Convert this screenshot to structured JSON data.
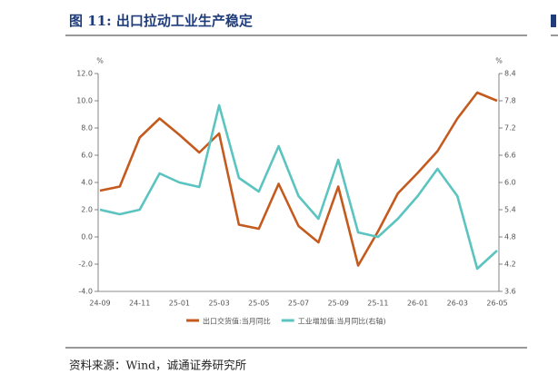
{
  "header": {
    "title": "图 11:  出口拉动工业生产稳定"
  },
  "chart_data": {
    "type": "line",
    "y_unit": "%",
    "y2_unit": "%",
    "categories": [
      "24-09",
      null,
      "24-11",
      null,
      "25-01",
      null,
      "25-03",
      null,
      "25-05",
      null,
      "25-07",
      null,
      "25-09",
      null,
      "25-11",
      null,
      "26-01",
      null,
      "26-03",
      null,
      "26-05"
    ],
    "series": [
      {
        "name": "出口交货值:当月同比",
        "color": "#c55a1e",
        "values": [
          3.4,
          3.7,
          7.3,
          8.7,
          7.5,
          6.2,
          7.6,
          0.9,
          0.6,
          3.9,
          0.8,
          -0.4,
          3.7,
          -2.1,
          0.4,
          3.2,
          4.7,
          6.3,
          8.7,
          10.6,
          10.0
        ]
      },
      {
        "name": "工业增加值:当月同比(右轴)",
        "color": "#5bc4c0",
        "axis": "y2",
        "values": [
          5.4,
          5.3,
          5.4,
          6.2,
          6.0,
          5.9,
          7.7,
          6.1,
          5.8,
          6.8,
          5.7,
          5.2,
          6.5,
          4.9,
          4.8,
          5.2,
          5.7,
          6.3,
          5.7,
          4.1,
          4.5
        ]
      }
    ],
    "ylim": [
      -4,
      12
    ],
    "yticks": [
      {
        "value": -4,
        "label": "-4.0"
      },
      {
        "value": -2,
        "label": "-2.0"
      },
      {
        "value": 0,
        "label": "0.0"
      },
      {
        "value": 2,
        "label": "2.0"
      },
      {
        "value": 4,
        "label": "4.0"
      },
      {
        "value": 6,
        "label": "6.0"
      },
      {
        "value": 8,
        "label": "8.0"
      },
      {
        "value": 10,
        "label": "10.0"
      },
      {
        "value": 12,
        "label": "12.0"
      }
    ],
    "y2lim": [
      3.6,
      8.4
    ],
    "y2ticks": [
      3.6,
      4.2,
      4.8,
      5.4,
      {
        "value": 6,
        "label": "6.0"
      },
      6.6,
      7.2,
      7.8,
      8.4
    ]
  },
  "footer": {
    "source": "资料来源：Wind，诚通证券研究所"
  }
}
